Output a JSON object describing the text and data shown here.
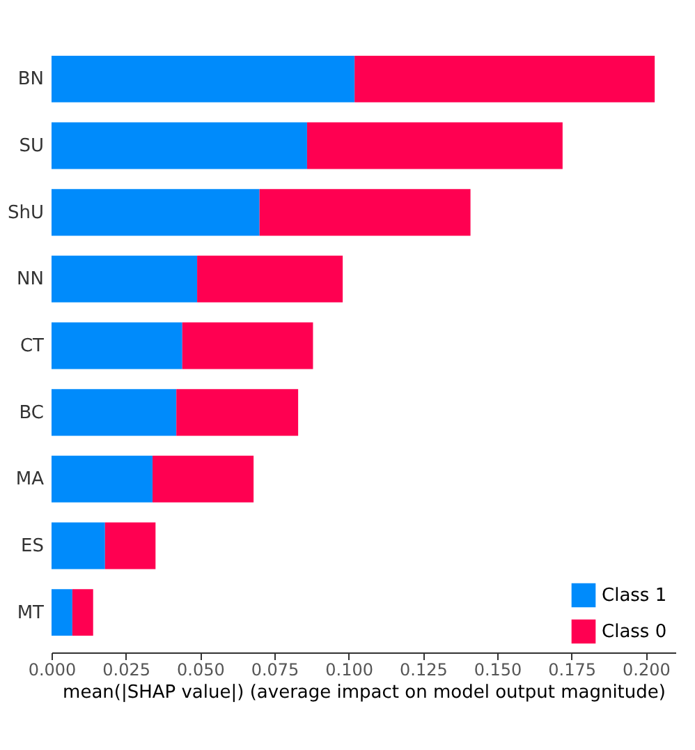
{
  "chart_data": {
    "type": "bar",
    "orientation": "horizontal",
    "stacked": true,
    "xlabel": "mean(|SHAP value|) (average impact on model output magnitude)",
    "categories": [
      "BN",
      "SU",
      "ShU",
      "NN",
      "CT",
      "BC",
      "MA",
      "ES",
      "MT"
    ],
    "series": [
      {
        "name": "Class 1",
        "color": "#008bfb",
        "values": [
          0.102,
          0.086,
          0.07,
          0.049,
          0.044,
          0.042,
          0.034,
          0.018,
          0.007
        ]
      },
      {
        "name": "Class 0",
        "color": "#ff0051",
        "values": [
          0.101,
          0.086,
          0.071,
          0.049,
          0.044,
          0.041,
          0.034,
          0.017,
          0.007
        ]
      }
    ],
    "xlim": [
      0,
      0.21
    ],
    "xticks": [
      {
        "value": 0,
        "label": "0.000"
      },
      {
        "value": 0.025,
        "label": "0.025"
      },
      {
        "value": 0.05,
        "label": "0.050"
      },
      {
        "value": 0.075,
        "label": "0.075"
      },
      {
        "value": 0.1,
        "label": "0.100"
      },
      {
        "value": 0.125,
        "label": "0.125"
      },
      {
        "value": 0.15,
        "label": "0.150"
      },
      {
        "value": 0.175,
        "label": "0.175"
      },
      {
        "value": 0.2,
        "label": "0.200"
      }
    ],
    "grid": false,
    "legend": "bottom right"
  }
}
